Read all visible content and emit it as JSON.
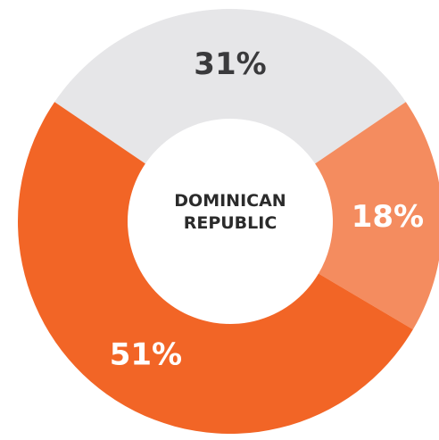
{
  "chart_data": {
    "type": "donut",
    "title": "DOMINICAN REPUBLIC",
    "values": [
      31,
      18,
      51
    ],
    "value_labels": [
      "31%",
      "18%",
      "51%"
    ],
    "colors": [
      "#e6e6e8",
      "#f48c5f",
      "#f26526"
    ],
    "label_colors": [
      "#3a3a3c",
      "#ffffff",
      "#ffffff"
    ]
  }
}
